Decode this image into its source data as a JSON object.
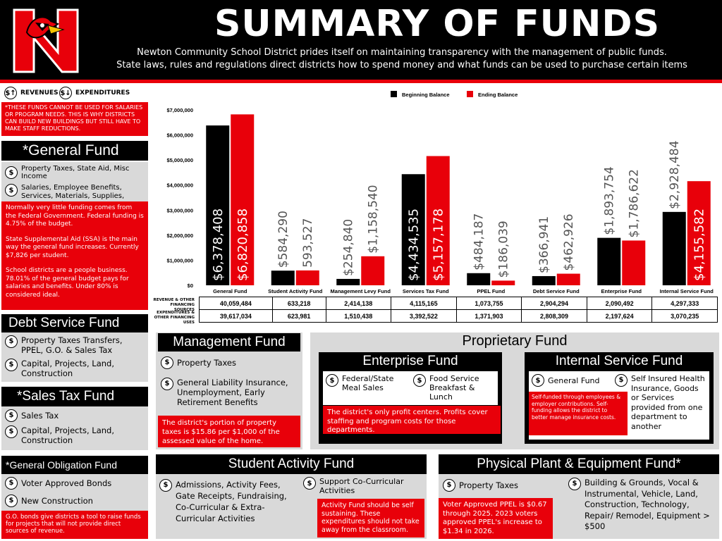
{
  "header": {
    "title": "SUMMARY OF FUNDS",
    "subtitle_line1": "Newton Community School District prides itself on maintaining transparency with the management of public funds.",
    "subtitle_line2": "State laws, rules and regulations direct districts how to spend money and what funds can be used to purchase certain items"
  },
  "legend": {
    "revenues": "REVENUES",
    "expenditures": "EXPENDITURES",
    "note": "*THESE FUNDS CANNOT BE USED FOR SALARIES OR PROGRAM NEEDS. THIS IS WHY DISTRICTS CAN BUILD NEW BUILDINGS BUT STILL HAVE TO MAKE STAFF REDUCTIONS."
  },
  "general_fund": {
    "title": "*General Fund",
    "revenue": "Property Taxes, State Aid, Misc Income",
    "expenditure": "Salaries, Employee Benefits, Services, Materials, Supplies, Transportation",
    "note1": "Normally very little funding comes from the Federal Government. Federal funding is 4.75% of the budget.",
    "note2": "State Supplemental Aid (SSA) is the main way the general fund increases. Currently $7,826 per student.",
    "note3": "School districts are a people business. 78.01% of the general budget pays for salaries and benefits. Under 80% is considered ideal."
  },
  "debt_service": {
    "title": "Debt Service Fund",
    "revenue": "Property Taxes Transfers, PPEL, G.O. & Sales Tax",
    "expenditure": "Capital, Projects, Land, Construction"
  },
  "sales_tax": {
    "title": "*Sales Tax Fund",
    "revenue": "Sales Tax",
    "expenditure": "Capital, Projects, Land, Construction"
  },
  "go_fund": {
    "title": "*General Obligation Fund",
    "revenue": "Voter Approved Bonds",
    "expenditure": "New Construction",
    "note": "G.O. bonds give districts a tool to raise funds for projects that will not provide direct sources of revenue."
  },
  "management": {
    "title": "Management Fund",
    "revenue": "Property Taxes",
    "expenditure": "General Liability Insurance, Unemployment, Early Retirement Benefits",
    "note": "The district's portion of property taxes is $15.86 per $1,000 of the assessed value of the home."
  },
  "proprietary": {
    "title": "Proprietary Fund",
    "enterprise": {
      "title": "Enterprise Fund",
      "revenue": "Federal/State Meal Sales",
      "expenditure": "Food Service Breakfast & Lunch",
      "note": "The district's only profit centers. Profits cover staffing and program costs for those departments."
    },
    "internal": {
      "title": "Internal Service Fund",
      "revenue": "General Fund",
      "expenditure": "Self Insured Health Insurance, Goods or Services provided from one department to another",
      "note": "Self-funded through employees & employer contributions. Self-funding allows the district to better manage insurance costs."
    }
  },
  "student_activity": {
    "title": "Student Activity Fund",
    "revenue": "Admissions, Activity Fees, Gate Receipts, Fundraising, Co-Curricular & Extra-Curricular Activities",
    "expenditure": "Support Co-Curricular Activities",
    "note": "Activity Fund should be self sustaining. These expenditures should not take away from the classroom."
  },
  "ppel": {
    "title": "Physical Plant & Equipment Fund*",
    "revenue": "Property Taxes",
    "expenditure": "Building & Grounds, Vocal & Instrumental, Vehicle, Land, Construction, Technology, Repair/ Remodel, Equipment > $500",
    "note": "Voter Approved PPEL is $0.67 through 2025. 2023 voters approved PPEL's increase to $1.34 in 2026."
  },
  "table": {
    "rev_label": "REVENUE & OTHER FINANCING SOURCES",
    "exp_label": "EXPENDITURES & OTHER FINANCING USES",
    "revenues": [
      "40,059,484",
      "633,218",
      "2,414,138",
      "4,115,165",
      "1,073,755",
      "2,904,294",
      "2,090,492",
      "4,297,333"
    ],
    "expenditures": [
      "39,617,034",
      "623,981",
      "1,510,438",
      "3,392,522",
      "1,371,903",
      "2,808,309",
      "2,197,624",
      "3,070,235"
    ]
  },
  "colors": {
    "red": "#e8000a",
    "black": "#000000",
    "grey": "#d9d9d9"
  },
  "chart_data": {
    "type": "bar",
    "categories": [
      "General Fund",
      "Student Activity Fund",
      "Management Levy Fund",
      "Services Tax Fund",
      "PPEL Fund",
      "Debt Service Fund",
      "Enterprise Fund",
      "Internal Service Fund"
    ],
    "series": [
      {
        "name": "Beginning Balance",
        "color": "#000000",
        "values": [
          6378408,
          584290,
          254840,
          4434535,
          484187,
          366941,
          1893754,
          2928484
        ],
        "labels": [
          "$6,378,408",
          "$584,290",
          "$254,840",
          "$4,434,535",
          "$484,187",
          "$366,941",
          "$1,893,754",
          "$2,928,484"
        ]
      },
      {
        "name": "Ending Balance",
        "color": "#e8000a",
        "values": [
          6820858,
          593527,
          1158540,
          5157178,
          186039,
          462926,
          1786622,
          4155582
        ],
        "labels": [
          "$6,820,858",
          "593,527",
          "$1,158,540",
          "$5,157,178",
          "$186,039",
          "$462,926",
          "$1,786,622",
          "$4,155,582"
        ]
      }
    ],
    "ylim": [
      0,
      7000000
    ],
    "yticks": [
      "$0",
      "$1,000,000",
      "$2,000,000",
      "$3,000,000",
      "$4,000,000",
      "$5,000,000",
      "$6,000,000",
      "$7,000,000"
    ],
    "legend_position": "top"
  }
}
